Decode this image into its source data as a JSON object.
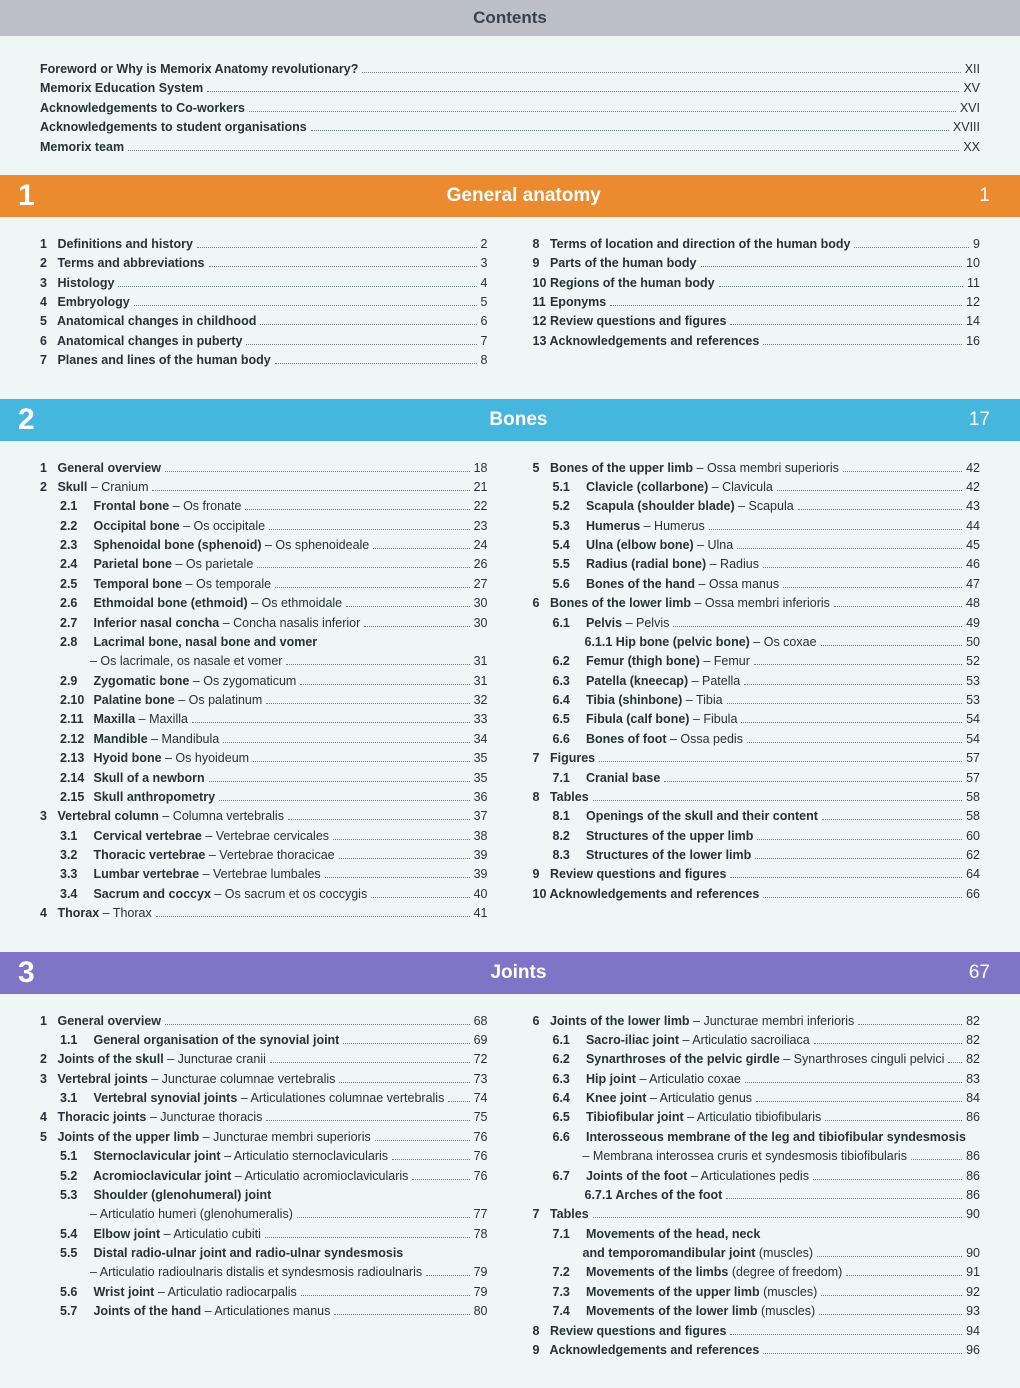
{
  "colors": {
    "page_bg": "#eef6f6",
    "top_bar_bg": "#bdbfc7",
    "chapter1_bg": "#ec8a2f",
    "chapter2_bg": "#45b6dd",
    "chapter3_bg": "#8074c6",
    "text": "#263238",
    "dots": "#6b7a85"
  },
  "typography": {
    "base_font": "Segoe UI, Arial, sans-serif",
    "base_size_pt": 9.5,
    "title_size_pt": 13,
    "chapter_num_size_pt": 22,
    "chapter_title_size_pt": 14
  },
  "title": "Contents",
  "prelims": [
    {
      "label": "Foreword or Why is Memorix Anatomy revolutionary?",
      "page": "XII"
    },
    {
      "label": "Memorix Education System",
      "page": "XV"
    },
    {
      "label": "Acknowledgements to Co-workers",
      "page": "XVI"
    },
    {
      "label": "Acknowledgements to student organisations",
      "page": "XVIII"
    },
    {
      "label": "Memorix team",
      "page": "XX"
    }
  ],
  "chapters": [
    {
      "num": "1",
      "title": "General anatomy",
      "start": "1",
      "color": "#ec8a2f",
      "left": [
        {
          "n": "1",
          "label": "Definitions and history",
          "page": "2"
        },
        {
          "n": "2",
          "label": "Terms and abbreviations",
          "page": "3"
        },
        {
          "n": "3",
          "label": "Histology",
          "page": "4"
        },
        {
          "n": "4",
          "label": "Embryology",
          "page": "5"
        },
        {
          "n": "5",
          "label": "Anatomical changes in childhood",
          "page": "6"
        },
        {
          "n": "6",
          "label": "Anatomical changes in puberty",
          "page": "7"
        },
        {
          "n": "7",
          "label": "Planes and lines of the human body",
          "page": "8"
        }
      ],
      "right": [
        {
          "n": "8",
          "label": "Terms of location and direction of the human body",
          "page": "9"
        },
        {
          "n": "9",
          "label": "Parts of the human body",
          "page": "10"
        },
        {
          "n": "10",
          "label": "Regions of the human body",
          "page": "11"
        },
        {
          "n": "11",
          "label": "Eponyms",
          "page": "12"
        },
        {
          "n": "12",
          "label": "Review questions and figures",
          "page": "14"
        },
        {
          "n": "13",
          "label": "Acknowledgements and references",
          "page": "16"
        }
      ]
    },
    {
      "num": "2",
      "title": "Bones",
      "start": "17",
      "color": "#45b6dd",
      "left": [
        {
          "n": "1",
          "label": "General overview",
          "page": "18"
        },
        {
          "n": "2",
          "label": "Skull",
          "latin": " – Cranium",
          "page": "21"
        },
        {
          "sub": true,
          "n": "2.1",
          "label": "Frontal bone",
          "latin": " – Os fronate",
          "page": "22"
        },
        {
          "sub": true,
          "n": "2.2",
          "label": "Occipital bone",
          "latin": " – Os occipitale",
          "page": "23"
        },
        {
          "sub": true,
          "n": "2.3",
          "label": "Sphenoidal bone (sphenoid)",
          "latin": " – Os sphenoideale",
          "page": "24"
        },
        {
          "sub": true,
          "n": "2.4",
          "label": "Parietal bone",
          "latin": " – Os parietale",
          "page": "26"
        },
        {
          "sub": true,
          "n": "2.5",
          "label": "Temporal bone",
          "latin": " – Os temporale",
          "page": "27"
        },
        {
          "sub": true,
          "n": "2.6",
          "label": "Ethmoidal bone (ethmoid)",
          "latin": " – Os ethmoidale",
          "page": "30"
        },
        {
          "sub": true,
          "n": "2.7",
          "label": "Inferior nasal concha",
          "latin": " – Concha nasalis inferior",
          "page": "30"
        },
        {
          "sub": true,
          "n": "2.8",
          "label": "Lacrimal bone, nasal bone and vomer",
          "nopage": true
        },
        {
          "cont": true,
          "label": "– Os lacrimale, os nasale et vomer",
          "page": "31"
        },
        {
          "sub": true,
          "n": "2.9",
          "label": "Zygomatic bone",
          "latin": " – Os zygomaticum",
          "page": "31"
        },
        {
          "sub": true,
          "n": "2.10",
          "label": "Palatine bone",
          "latin": " – Os palatinum",
          "page": "32"
        },
        {
          "sub": true,
          "n": "2.11",
          "label": "Maxilla",
          "latin": " – Maxilla",
          "page": "33"
        },
        {
          "sub": true,
          "n": "2.12",
          "label": "Mandible",
          "latin": " – Mandibula",
          "page": "34"
        },
        {
          "sub": true,
          "n": "2.13",
          "label": "Hyoid bone",
          "latin": " – Os hyoideum",
          "page": "35"
        },
        {
          "sub": true,
          "n": "2.14",
          "label": "Skull of a newborn",
          "page": "35"
        },
        {
          "sub": true,
          "n": "2.15",
          "label": "Skull anthropometry",
          "page": "36"
        },
        {
          "n": "3",
          "label": "Vertebral column",
          "latin": " – Columna vertebralis",
          "page": "37"
        },
        {
          "sub": true,
          "n": "3.1",
          "label": "Cervical vertebrae",
          "latin": " – Vertebrae cervicales",
          "page": "38"
        },
        {
          "sub": true,
          "n": "3.2",
          "label": "Thoracic vertebrae",
          "latin": " – Vertebrae thoracicae",
          "page": "39"
        },
        {
          "sub": true,
          "n": "3.3",
          "label": "Lumbar vertebrae",
          "latin": " – Vertebrae lumbales",
          "page": "39"
        },
        {
          "sub": true,
          "n": "3.4",
          "label": "Sacrum and coccyx",
          "latin": " – Os sacrum et os coccygis",
          "page": "40"
        },
        {
          "n": "4",
          "label": "Thorax",
          "latin": " – Thorax",
          "page": "41"
        }
      ],
      "right": [
        {
          "n": "5",
          "label": "Bones of the upper limb",
          "latin": " – Ossa membri superioris",
          "page": "42"
        },
        {
          "sub": true,
          "n": "5.1",
          "label": "Clavicle (collarbone)",
          "latin": " – Clavicula",
          "page": "42"
        },
        {
          "sub": true,
          "n": "5.2",
          "label": "Scapula (shoulder blade)",
          "latin": " – Scapula",
          "page": "43"
        },
        {
          "sub": true,
          "n": "5.3",
          "label": "Humerus",
          "latin": " – Humerus",
          "page": "44"
        },
        {
          "sub": true,
          "n": "5.4",
          "label": "Ulna (elbow bone)",
          "latin": " – Ulna",
          "page": "45"
        },
        {
          "sub": true,
          "n": "5.5",
          "label": "Radius (radial bone)",
          "latin": " – Radius",
          "page": "46"
        },
        {
          "sub": true,
          "n": "5.6",
          "label": "Bones of the hand",
          "latin": " – Ossa manus",
          "page": "47"
        },
        {
          "n": "6",
          "label": "Bones of the lower limb",
          "latin": " – Ossa membri inferioris",
          "page": "48"
        },
        {
          "sub": true,
          "n": "6.1",
          "label": "Pelvis",
          "latin": " – Pelvis",
          "page": "49"
        },
        {
          "subsub": true,
          "n": "6.1.1",
          "label": "Hip bone (pelvic bone)",
          "latin": " – Os coxae",
          "page": "50"
        },
        {
          "sub": true,
          "n": "6.2",
          "label": "Femur (thigh bone)",
          "latin": " – Femur",
          "page": "52"
        },
        {
          "sub": true,
          "n": "6.3",
          "label": "Patella (kneecap)",
          "latin": " – Patella",
          "page": "53"
        },
        {
          "sub": true,
          "n": "6.4",
          "label": "Tibia (shinbone)",
          "latin": " – Tibia",
          "page": "53"
        },
        {
          "sub": true,
          "n": "6.5",
          "label": "Fibula (calf bone)",
          "latin": " – Fibula",
          "page": "54"
        },
        {
          "sub": true,
          "n": "6.6",
          "label": "Bones of foot",
          "latin": " – Ossa pedis",
          "page": "54"
        },
        {
          "n": "7",
          "label": "Figures",
          "page": "57"
        },
        {
          "sub": true,
          "n": "7.1",
          "label": "Cranial base",
          "page": "57"
        },
        {
          "n": "8",
          "label": "Tables",
          "page": "58"
        },
        {
          "sub": true,
          "n": "8.1",
          "label": "Openings of the skull and their content",
          "page": "58"
        },
        {
          "sub": true,
          "n": "8.2",
          "label": "Structures of the upper limb",
          "page": "60"
        },
        {
          "sub": true,
          "n": "8.3",
          "label": "Structures of the lower limb",
          "page": "62"
        },
        {
          "n": "9",
          "label": "Review questions and figures",
          "page": "64"
        },
        {
          "n": "10",
          "label": "Acknowledgements and references",
          "page": "66"
        }
      ]
    },
    {
      "num": "3",
      "title": "Joints",
      "start": "67",
      "color": "#8074c6",
      "left": [
        {
          "n": "1",
          "label": "General overview",
          "page": "68"
        },
        {
          "sub": true,
          "n": "1.1",
          "label": "General organisation of the synovial joint",
          "page": "69"
        },
        {
          "n": "2",
          "label": "Joints of the skull",
          "latin": " – Juncturae cranii",
          "page": "72"
        },
        {
          "n": "3",
          "label": "Vertebral joints",
          "latin": " – Juncturae columnae vertebralis",
          "page": "73"
        },
        {
          "sub": true,
          "n": "3.1",
          "label": "Vertebral synovial joints",
          "latin": " – Articulationes columnae vertebralis",
          "page": "74"
        },
        {
          "n": "4",
          "label": "Thoracic joints",
          "latin": " – Juncturae thoracis",
          "page": "75"
        },
        {
          "n": "5",
          "label": "Joints of the upper limb",
          "latin": " – Juncturae membri superioris",
          "page": "76"
        },
        {
          "sub": true,
          "n": "5.1",
          "label": "Sternoclavicular joint",
          "latin": " – Articulatio sternoclavicularis",
          "page": "76"
        },
        {
          "sub": true,
          "n": "5.2",
          "label": "Acromioclavicular joint",
          "latin": " – Articulatio acromioclavicularis",
          "page": "76"
        },
        {
          "sub": true,
          "n": "5.3",
          "label": "Shoulder (glenohumeral) joint",
          "nopage": true
        },
        {
          "cont": true,
          "label": "– Articulatio humeri (glenohumeralis)",
          "page": "77"
        },
        {
          "sub": true,
          "n": "5.4",
          "label": "Elbow joint",
          "latin": " – Articulatio cubiti",
          "page": "78"
        },
        {
          "sub": true,
          "n": "5.5",
          "label": "Distal radio-ulnar joint and radio-ulnar syndesmosis",
          "nopage": true
        },
        {
          "cont": true,
          "label": "– Articulatio radioulnaris distalis et syndesmosis radioulnaris",
          "page": "79"
        },
        {
          "sub": true,
          "n": "5.6",
          "label": "Wrist joint",
          "latin": " – Articulatio radiocarpalis",
          "page": "79"
        },
        {
          "sub": true,
          "n": "5.7",
          "label": "Joints of the hand",
          "latin": " – Articulationes manus",
          "page": "80"
        }
      ],
      "right": [
        {
          "n": "6",
          "label": "Joints of the lower limb",
          "latin": " – Juncturae membri inferioris",
          "page": "82"
        },
        {
          "sub": true,
          "n": "6.1",
          "label": "Sacro-iliac joint",
          "latin": " – Articulatio sacroiliaca",
          "page": "82"
        },
        {
          "sub": true,
          "n": "6.2",
          "label": "Synarthroses of the pelvic girdle",
          "latin": " – Synarthroses cinguli pelvici",
          "page": "82"
        },
        {
          "sub": true,
          "n": "6.3",
          "label": "Hip joint",
          "latin": " – Articulatio coxae",
          "page": "83"
        },
        {
          "sub": true,
          "n": "6.4",
          "label": "Knee joint",
          "latin": " – Articulatio genus",
          "page": "84"
        },
        {
          "sub": true,
          "n": "6.5",
          "label": "Tibiofibular joint",
          "latin": " – Articulatio tibiofibularis",
          "page": "86"
        },
        {
          "sub": true,
          "n": "6.6",
          "label": "Interosseous membrane of the leg and tibiofibular syndesmosis",
          "nopage": true
        },
        {
          "cont": true,
          "label": "– Membrana interossea cruris et syndesmosis tibiofibularis",
          "page": "86"
        },
        {
          "sub": true,
          "n": "6.7",
          "label": "Joints of the foot",
          "latin": " – Articulationes pedis",
          "page": "86"
        },
        {
          "subsub": true,
          "n": "6.7.1",
          "label": "Arches of the foot",
          "page": "86"
        },
        {
          "n": "7",
          "label": "Tables",
          "page": "90"
        },
        {
          "sub": true,
          "n": "7.1",
          "label": "Movements of the head, neck",
          "nopage": true,
          "plain": true
        },
        {
          "cont": true,
          "bold": true,
          "label": "and temporomandibular joint",
          "latin": " (muscles)",
          "page": "90"
        },
        {
          "sub": true,
          "n": "7.2",
          "label": "Movements of the limbs",
          "latin": " (degree of freedom)",
          "page": "91"
        },
        {
          "sub": true,
          "n": "7.3",
          "label": "Movements of the upper limb",
          "latin": " (muscles)",
          "page": "92"
        },
        {
          "sub": true,
          "n": "7.4",
          "label": "Movements of the lower limb",
          "latin": " (muscles)",
          "page": "93"
        },
        {
          "n": "8",
          "label": "Review questions and figures",
          "page": "94"
        },
        {
          "n": "9",
          "label": "Acknowledgements and references",
          "page": "96"
        }
      ]
    }
  ]
}
